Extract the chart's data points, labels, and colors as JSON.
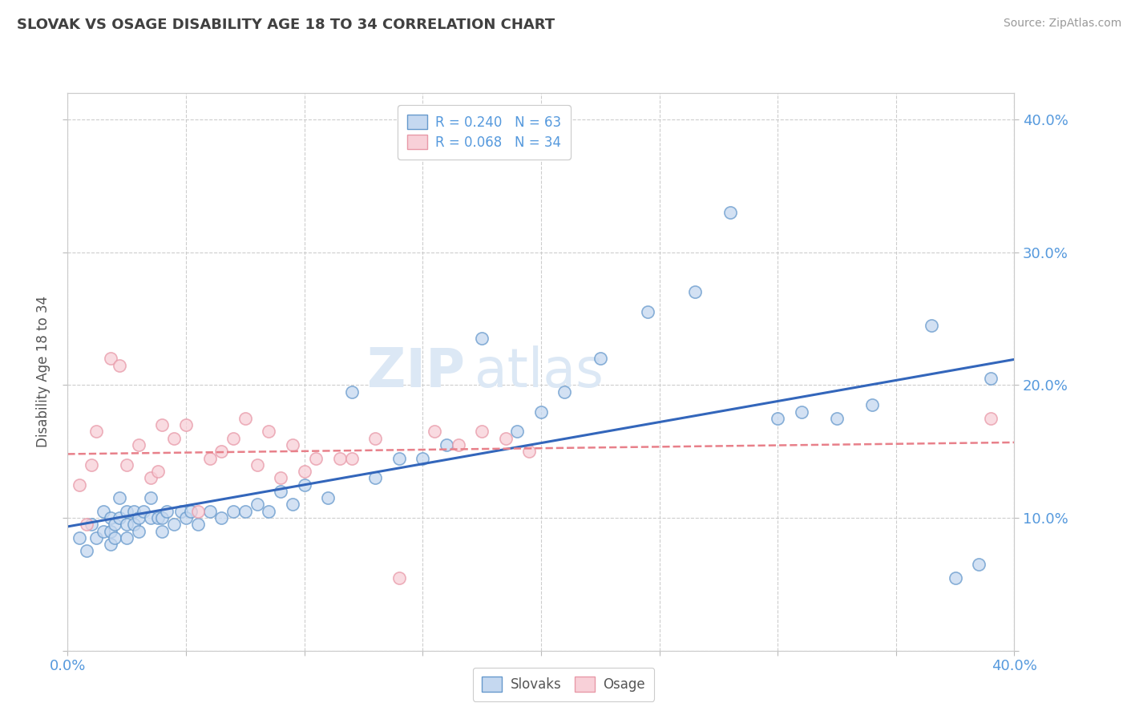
{
  "title": "SLOVAK VS OSAGE DISABILITY AGE 18 TO 34 CORRELATION CHART",
  "source_text": "Source: ZipAtlas.com",
  "ylabel": "Disability Age 18 to 34",
  "xlim": [
    0.0,
    0.4
  ],
  "ylim": [
    0.0,
    0.42
  ],
  "xticks": [
    0.0,
    0.05,
    0.1,
    0.15,
    0.2,
    0.25,
    0.3,
    0.35,
    0.4
  ],
  "yticks": [
    0.0,
    0.1,
    0.2,
    0.3,
    0.4
  ],
  "legend_r_slovak": "R = 0.240",
  "legend_n_slovak": "N = 63",
  "legend_r_osage": "R = 0.068",
  "legend_n_osage": "N = 34",
  "slovak_face_color": "#c5d8f0",
  "slovak_edge_color": "#6699cc",
  "osage_face_color": "#f8d0d8",
  "osage_edge_color": "#e899a8",
  "slovak_line_color": "#3366bb",
  "osage_line_color": "#e8808a",
  "background_color": "#ffffff",
  "grid_color": "#c8c8c8",
  "title_color": "#404040",
  "axis_tick_color": "#5599dd",
  "ylabel_color": "#555555",
  "watermark_color": "#dce8f5",
  "source_color": "#999999",
  "slovak_scatter_x": [
    0.005,
    0.008,
    0.01,
    0.012,
    0.015,
    0.015,
    0.018,
    0.018,
    0.018,
    0.02,
    0.02,
    0.022,
    0.022,
    0.025,
    0.025,
    0.025,
    0.028,
    0.028,
    0.03,
    0.03,
    0.032,
    0.035,
    0.035,
    0.038,
    0.04,
    0.04,
    0.042,
    0.045,
    0.048,
    0.05,
    0.052,
    0.055,
    0.06,
    0.065,
    0.07,
    0.075,
    0.08,
    0.085,
    0.09,
    0.095,
    0.1,
    0.11,
    0.12,
    0.13,
    0.14,
    0.15,
    0.16,
    0.175,
    0.19,
    0.2,
    0.21,
    0.225,
    0.245,
    0.265,
    0.28,
    0.3,
    0.31,
    0.325,
    0.34,
    0.365,
    0.375,
    0.385,
    0.39
  ],
  "slovak_scatter_y": [
    0.085,
    0.075,
    0.095,
    0.085,
    0.09,
    0.105,
    0.08,
    0.09,
    0.1,
    0.085,
    0.095,
    0.1,
    0.115,
    0.085,
    0.095,
    0.105,
    0.095,
    0.105,
    0.09,
    0.1,
    0.105,
    0.1,
    0.115,
    0.1,
    0.09,
    0.1,
    0.105,
    0.095,
    0.105,
    0.1,
    0.105,
    0.095,
    0.105,
    0.1,
    0.105,
    0.105,
    0.11,
    0.105,
    0.12,
    0.11,
    0.125,
    0.115,
    0.195,
    0.13,
    0.145,
    0.145,
    0.155,
    0.235,
    0.165,
    0.18,
    0.195,
    0.22,
    0.255,
    0.27,
    0.33,
    0.175,
    0.18,
    0.175,
    0.185,
    0.245,
    0.055,
    0.065,
    0.205
  ],
  "osage_scatter_x": [
    0.005,
    0.008,
    0.01,
    0.012,
    0.018,
    0.022,
    0.025,
    0.03,
    0.035,
    0.038,
    0.04,
    0.045,
    0.05,
    0.055,
    0.06,
    0.065,
    0.07,
    0.075,
    0.08,
    0.085,
    0.09,
    0.095,
    0.1,
    0.105,
    0.115,
    0.12,
    0.13,
    0.14,
    0.155,
    0.165,
    0.175,
    0.185,
    0.195,
    0.39
  ],
  "osage_scatter_y": [
    0.125,
    0.095,
    0.14,
    0.165,
    0.22,
    0.215,
    0.14,
    0.155,
    0.13,
    0.135,
    0.17,
    0.16,
    0.17,
    0.105,
    0.145,
    0.15,
    0.16,
    0.175,
    0.14,
    0.165,
    0.13,
    0.155,
    0.135,
    0.145,
    0.145,
    0.145,
    0.16,
    0.055,
    0.165,
    0.155,
    0.165,
    0.16,
    0.15,
    0.175
  ]
}
